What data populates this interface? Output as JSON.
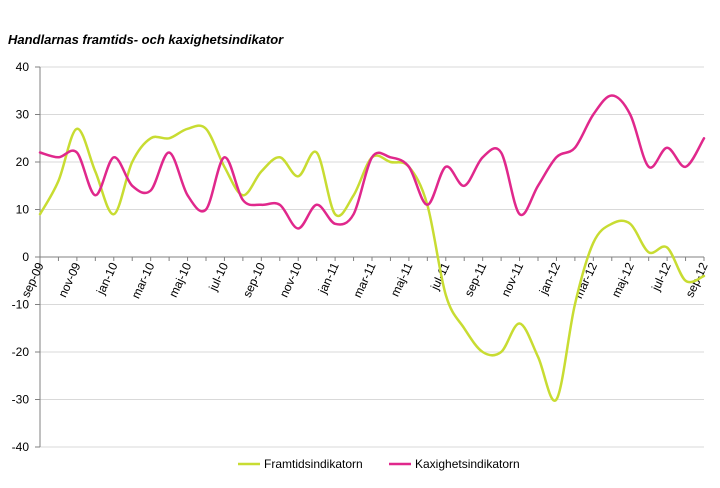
{
  "chart_data": {
    "type": "line",
    "title": "Handlarnas framtids- och kaxighetsindikator",
    "xlabel": "",
    "ylabel": "",
    "ylim": [
      -40,
      40
    ],
    "yticks": [
      40,
      30,
      20,
      10,
      0,
      -10,
      -20,
      -30,
      -40
    ],
    "grid": true,
    "legend": "bottom",
    "x_tick_labels": [
      "sep-09",
      "nov-09",
      "jan-10",
      "mar-10",
      "maj-10",
      "jul-10",
      "sep-10",
      "nov-10",
      "jan-11",
      "mar-11",
      "maj-11",
      "jul-11",
      "sep-11",
      "nov-11",
      "jan-12",
      "mar-12",
      "maj-12",
      "jul-12",
      "sep-12"
    ],
    "x": [
      "sep-09",
      "okt-09",
      "nov-09",
      "dec-09",
      "jan-10",
      "feb-10",
      "mar-10",
      "apr-10",
      "maj-10",
      "jun-10",
      "jul-10",
      "aug-10",
      "sep-10",
      "okt-10",
      "nov-10",
      "dec-10",
      "jan-11",
      "feb-11",
      "mar-11",
      "apr-11",
      "maj-11",
      "jun-11",
      "jul-11",
      "aug-11",
      "sep-11",
      "okt-11",
      "nov-11",
      "dec-11",
      "jan-12",
      "feb-12",
      "mar-12",
      "apr-12",
      "maj-12",
      "jun-12",
      "jul-12",
      "aug-12",
      "sep-12"
    ],
    "series": [
      {
        "name": "Framtidsindikatorn",
        "color": "#c8dc32",
        "values": [
          9,
          16,
          27,
          18,
          9,
          20,
          25,
          25,
          27,
          27,
          19,
          13,
          18,
          21,
          17,
          22,
          9,
          13,
          21,
          20,
          19,
          11,
          -8,
          -15,
          -20,
          -20,
          -14,
          -21,
          -30,
          -10,
          3,
          7,
          7,
          1,
          2,
          -5,
          -4
        ]
      },
      {
        "name": "Kaxighetsindikatorn",
        "color": "#e0288c",
        "values": [
          22,
          21,
          22,
          13,
          21,
          15,
          14,
          22,
          13,
          10,
          21,
          12,
          11,
          11,
          6,
          11,
          7,
          9,
          21,
          21,
          19,
          11,
          19,
          15,
          21,
          22,
          9,
          15,
          21,
          23,
          30,
          34,
          30,
          19,
          23,
          19,
          25
        ]
      }
    ]
  }
}
